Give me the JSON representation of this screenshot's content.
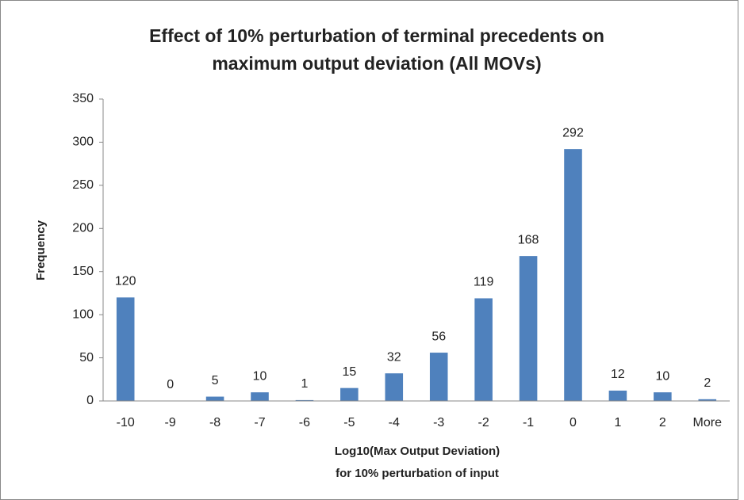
{
  "chart_data": {
    "type": "bar",
    "title": [
      "Effect of 10% perturbation of terminal precedents on",
      "maximum output deviation (All MOVs)"
    ],
    "x_label": [
      "Log10(Max Output Deviation)",
      "for 10% perturbation of input"
    ],
    "y_label": "Frequency",
    "categories": [
      "-10",
      "-9",
      "-8",
      "-7",
      "-6",
      "-5",
      "-4",
      "-3",
      "-2",
      "-1",
      "0",
      "1",
      "2",
      "More"
    ],
    "values": [
      120,
      0,
      5,
      10,
      1,
      15,
      32,
      56,
      119,
      168,
      292,
      12,
      10,
      2
    ],
    "color": "#4f81bd",
    "ylim": [
      0,
      350
    ],
    "yticks": [
      0,
      50,
      100,
      150,
      200,
      250,
      300,
      350
    ],
    "grid": false
  }
}
